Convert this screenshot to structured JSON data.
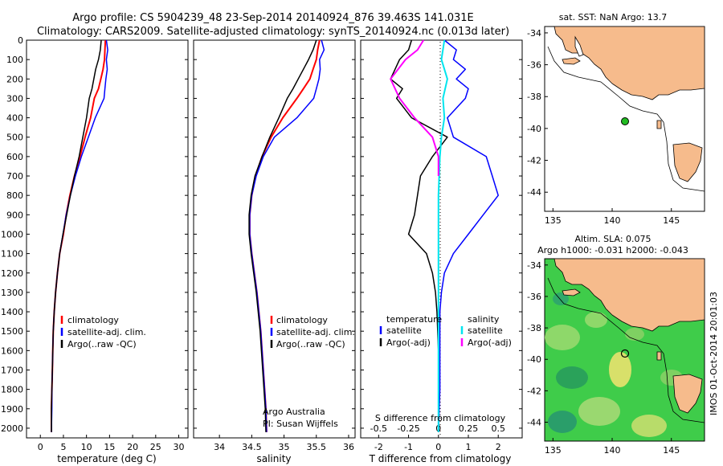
{
  "header": {
    "line1": "Argo profile: CS 5904239_48 23-Sep-2014 20140924_876 39.463S 141.031E",
    "line2": "Climatology: CARS2009. Satellite-adjusted climatology: synTS_20140924.nc (0.013d later)"
  },
  "colors": {
    "clim": "#ff0000",
    "sat": "#0000ff",
    "argo": "#000000",
    "sat_diff_s": "#00e5ee",
    "argo_diff_s": "#ff00ff",
    "land": "#f6bb8c",
    "float": "#22bb22"
  },
  "chart_data": [
    {
      "type": "line",
      "name": "temperature-panel",
      "xlabel": "temperature (deg C)",
      "ylabel": "",
      "xlim": [
        -3,
        32
      ],
      "ylim": [
        2050,
        0
      ],
      "xticks": [
        0,
        5,
        10,
        15,
        20,
        25,
        30
      ],
      "yticks": [
        0,
        100,
        200,
        300,
        400,
        500,
        600,
        700,
        800,
        900,
        1000,
        1100,
        1200,
        1300,
        1400,
        1500,
        1600,
        1700,
        1800,
        1900,
        2000
      ],
      "legend_placement": "lower-center",
      "series": [
        {
          "name": "climatology",
          "color": "#ff0000",
          "width": 2,
          "x": [
            14.1,
            14.0,
            13.9,
            13.6,
            13.1,
            12.6,
            11.7,
            10.9,
            9.7,
            8.6,
            7.4,
            6.4,
            5.6,
            5.0,
            4.2,
            3.7,
            3.3,
            3.0,
            2.8,
            2.7,
            2.6,
            2.5,
            2.4,
            2.4
          ],
          "y": [
            0,
            50,
            100,
            150,
            200,
            250,
            300,
            400,
            500,
            600,
            700,
            800,
            900,
            1000,
            1100,
            1200,
            1300,
            1400,
            1500,
            1600,
            1700,
            1800,
            1900,
            2020
          ]
        },
        {
          "name": "satellite-adj. clim.",
          "color": "#0000ff",
          "width": 1.5,
          "x": [
            14.3,
            14.6,
            14.3,
            14.5,
            14.2,
            14.0,
            13.8,
            11.9,
            10.4,
            8.9,
            7.6,
            6.5,
            5.6,
            4.9,
            4.2,
            3.7,
            3.3,
            3.0,
            2.8,
            2.7,
            2.6,
            2.5,
            2.5,
            2.4
          ],
          "y": [
            0,
            50,
            100,
            150,
            200,
            250,
            300,
            400,
            500,
            600,
            700,
            800,
            900,
            1000,
            1100,
            1200,
            1300,
            1400,
            1500,
            1600,
            1700,
            1800,
            1900,
            2020
          ]
        },
        {
          "name": "Argo(..raw -QC)",
          "color": "#000000",
          "width": 1.5,
          "x": [
            13.2,
            13.0,
            12.6,
            12.0,
            11.6,
            11.2,
            10.6,
            10.0,
            9.2,
            8.4,
            7.4,
            6.5,
            5.7,
            4.9,
            4.2,
            3.7,
            3.3,
            3.0,
            2.8,
            2.7,
            2.6,
            2.5,
            2.4,
            2.4
          ],
          "y": [
            0,
            50,
            100,
            150,
            200,
            250,
            300,
            400,
            500,
            600,
            700,
            800,
            900,
            1000,
            1100,
            1200,
            1300,
            1400,
            1500,
            1600,
            1700,
            1800,
            1900,
            2020
          ]
        }
      ]
    },
    {
      "type": "line",
      "name": "salinity-panel",
      "xlabel": "salinity",
      "ylabel": "",
      "xlim": [
        33.6,
        36.1
      ],
      "ylim": [
        2050,
        0
      ],
      "xticks": [
        34,
        34.5,
        35,
        35.5,
        36
      ],
      "legend_placement": "lower-right",
      "annotation": [
        "Argo Australia",
        "PI: Susan Wijffels"
      ],
      "series": [
        {
          "name": "climatology",
          "color": "#ff0000",
          "width": 2,
          "x": [
            35.55,
            35.52,
            35.5,
            35.45,
            35.4,
            35.3,
            35.2,
            34.98,
            34.8,
            34.66,
            34.56,
            34.5,
            34.47,
            34.47,
            34.5,
            34.54,
            34.58,
            34.61,
            34.64,
            34.66,
            34.68,
            34.7,
            34.72,
            34.73
          ],
          "y": [
            0,
            50,
            100,
            150,
            200,
            250,
            300,
            400,
            500,
            600,
            700,
            800,
            900,
            1000,
            1100,
            1200,
            1300,
            1400,
            1500,
            1600,
            1700,
            1800,
            1900,
            2020
          ]
        },
        {
          "name": "satellite-adj. clim.",
          "color": "#0000ff",
          "width": 1.5,
          "x": [
            35.58,
            35.62,
            35.55,
            35.56,
            35.54,
            35.5,
            35.46,
            35.2,
            34.85,
            34.68,
            34.57,
            34.5,
            34.47,
            34.47,
            34.5,
            34.54,
            34.58,
            34.61,
            34.64,
            34.66,
            34.68,
            34.7,
            34.72,
            34.73
          ],
          "y": [
            0,
            50,
            100,
            150,
            200,
            250,
            300,
            400,
            500,
            600,
            700,
            800,
            900,
            1000,
            1100,
            1200,
            1300,
            1400,
            1500,
            1600,
            1700,
            1800,
            1900,
            2020
          ]
        },
        {
          "name": "Argo(..raw -QC)",
          "color": "#000000",
          "width": 1.5,
          "x": [
            35.5,
            35.45,
            35.38,
            35.3,
            35.22,
            35.14,
            35.05,
            34.92,
            34.78,
            34.66,
            34.55,
            34.49,
            34.46,
            34.46,
            34.49,
            34.53,
            34.57,
            34.6,
            34.63,
            34.65,
            34.67,
            34.69,
            34.71,
            34.72
          ],
          "y": [
            0,
            50,
            100,
            150,
            200,
            250,
            300,
            400,
            500,
            600,
            700,
            800,
            900,
            1000,
            1100,
            1200,
            1300,
            1400,
            1500,
            1600,
            1700,
            1800,
            1900,
            2020
          ]
        }
      ]
    },
    {
      "type": "line",
      "name": "difference-panel",
      "xlabel": "T difference from climatology",
      "x2label": "S difference from climatology",
      "xlim": [
        -2.6,
        2.8
      ],
      "ylim": [
        2050,
        0
      ],
      "xticks": [
        -2,
        -1,
        0,
        1,
        2
      ],
      "x2ticks": [
        -0.5,
        -0.25,
        0,
        0.25,
        0.5
      ],
      "legend_placement": "lower-center",
      "legend_headers": [
        "temperature",
        "salinity"
      ],
      "series": [
        {
          "name": "satellite",
          "group": "temperature",
          "color": "#0000ff",
          "width": 1.5,
          "x": [
            0.2,
            0.6,
            0.5,
            0.9,
            0.6,
            1.0,
            0.9,
            0.3,
            0.5,
            1.6,
            1.8,
            2.0,
            1.5,
            1.0,
            0.5,
            0.2,
            0.1,
            0.05,
            0.05,
            0.05,
            0.0
          ],
          "y": [
            0,
            50,
            100,
            150,
            200,
            250,
            300,
            400,
            500,
            600,
            700,
            800,
            900,
            1000,
            1100,
            1200,
            1300,
            1400,
            1600,
            1800,
            2020
          ]
        },
        {
          "name": "Argo(-adj)",
          "group": "temperature",
          "color": "#000000",
          "width": 1.5,
          "x": [
            -0.9,
            -1.0,
            -1.3,
            -1.6,
            -1.2,
            -1.4,
            -0.9,
            0.3,
            -0.2,
            -0.6,
            -0.7,
            -0.8,
            -1.0,
            -0.4,
            -0.2,
            -0.1,
            -0.05,
            0.0,
            0.0
          ],
          "y": [
            0,
            50,
            100,
            200,
            250,
            300,
            400,
            500,
            600,
            700,
            800,
            900,
            1000,
            1100,
            1200,
            1300,
            1400,
            1600,
            2020
          ]
        },
        {
          "name": "satellite",
          "group": "salinity",
          "color": "#00e5ee",
          "width": 2,
          "x": [
            0.2,
            0.1,
            0.3,
            0.15,
            0.2,
            0.1,
            0.05,
            0.0,
            0.0,
            0.0,
            0.0
          ],
          "y": [
            0,
            100,
            200,
            300,
            400,
            500,
            600,
            800,
            1200,
            1600,
            2020
          ]
        },
        {
          "name": "Argo(-adj)",
          "group": "salinity",
          "color": "#ff00ff",
          "width": 2,
          "x": [
            -0.5,
            -0.7,
            -1.1,
            -1.6,
            -1.3,
            -0.8,
            -0.2,
            0.0,
            0.0
          ],
          "y": [
            0,
            50,
            100,
            200,
            300,
            400,
            500,
            600,
            700
          ]
        }
      ]
    }
  ],
  "maps": {
    "top": {
      "title": "sat. SST: NaN Argo: 13.7",
      "xticks": [
        135,
        140,
        145
      ],
      "yticks": [
        -34,
        -36,
        -38,
        -40,
        -42,
        -44
      ],
      "xlim": [
        134.3,
        147.8
      ],
      "ylim": [
        -45.2,
        -33.6
      ],
      "float_position": [
        141.03,
        -39.46
      ]
    },
    "bottom": {
      "title_line1": "Altim. SLA: 0.075",
      "title_line2": "Argo h1000: -0.031 h2000: -0.043",
      "xticks": [
        135,
        140,
        145
      ],
      "yticks": [
        -34,
        -36,
        -38,
        -40,
        -42,
        -44
      ],
      "xlim": [
        134.3,
        147.8
      ],
      "ylim": [
        -45.2,
        -33.6
      ],
      "float_position": [
        141.03,
        -39.46
      ],
      "side_label": "IMOS 01-Oct-2014 20:01:03"
    }
  }
}
